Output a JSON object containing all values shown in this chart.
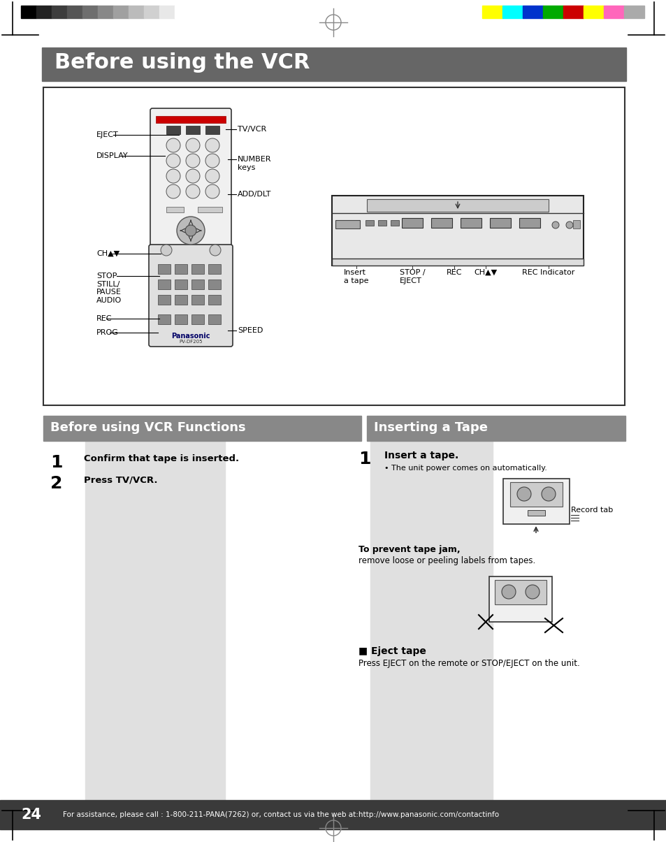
{
  "page_bg": "#ffffff",
  "main_title_bg": "#666666",
  "main_title_text": "Before using the VCR",
  "main_title_color": "#ffffff",
  "section1_title_bg": "#888888",
  "section1_title_text": "Before using VCR Functions",
  "section1_title_color": "#ffffff",
  "section2_title_bg": "#888888",
  "section2_title_text": "Inserting a Tape",
  "section2_title_color": "#ffffff",
  "footer_bg": "#3a3a3a",
  "footer_text": "For assistance, please call : 1-800-211-PANA(7262) or, contact us via the web at:http://www.panasonic.com/contactinfo",
  "footer_color": "#ffffff",
  "page_number": "24",
  "bw_colors": [
    "#000000",
    "#222222",
    "#3d3d3d",
    "#555555",
    "#6e6e6e",
    "#888888",
    "#a0a0a0",
    "#bbbbbb",
    "#d0d0d0",
    "#e8e8e8",
    "#ffffff"
  ],
  "color_bars": [
    "#ffff00",
    "#00ffff",
    "#0033cc",
    "#00aa00",
    "#cc0000",
    "#ffff00",
    "#ff66bb",
    "#aaaaaa"
  ],
  "gray_panel_color": "#e0e0e0",
  "section2_note_title": "To prevent tape jam,",
  "section2_note_body": "remove loose or peeling labels from tapes.",
  "section2_eject_title": "■ Eject tape",
  "section2_eject_body": "Press EJECT on the remote or STOP/EJECT on the unit.",
  "record_tab_label": "Record tab"
}
